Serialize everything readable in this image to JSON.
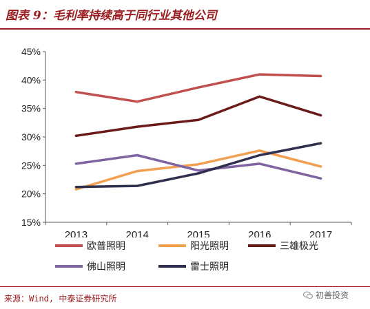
{
  "header": {
    "title": "图表 9：毛利率持续高于同行业其他公司"
  },
  "footer": {
    "source": "来源：Wind, 中泰证券研究所",
    "watermark": "初善投资"
  },
  "colors": {
    "brand": "#9b1d20"
  },
  "chart_data": {
    "type": "line",
    "categories": [
      "2013",
      "2014",
      "2015",
      "2016",
      "2017"
    ],
    "ylim": [
      0.15,
      0.45
    ],
    "yticks": [
      "15%",
      "20%",
      "25%",
      "30%",
      "35%",
      "40%",
      "45%"
    ],
    "ytick_values": [
      0.15,
      0.2,
      0.25,
      0.3,
      0.35,
      0.4,
      0.45
    ],
    "legend_position": "bottom",
    "grid": false,
    "series": [
      {
        "name": "欧普照明",
        "color": "#c0504d",
        "values": [
          0.379,
          0.362,
          0.387,
          0.41,
          0.407
        ]
      },
      {
        "name": "阳光照明",
        "color": "#f0a050",
        "values": [
          0.208,
          0.24,
          0.252,
          0.276,
          0.248
        ]
      },
      {
        "name": "三雄极光",
        "color": "#6b1a1a",
        "values": [
          0.302,
          0.318,
          0.33,
          0.371,
          0.338
        ]
      },
      {
        "name": "佛山照明",
        "color": "#8064a2",
        "values": [
          0.253,
          0.268,
          0.241,
          0.253,
          0.227
        ]
      },
      {
        "name": "雷士照明",
        "color": "#2f2f4f",
        "values": [
          0.212,
          0.214,
          0.236,
          0.268,
          0.289
        ]
      }
    ]
  }
}
